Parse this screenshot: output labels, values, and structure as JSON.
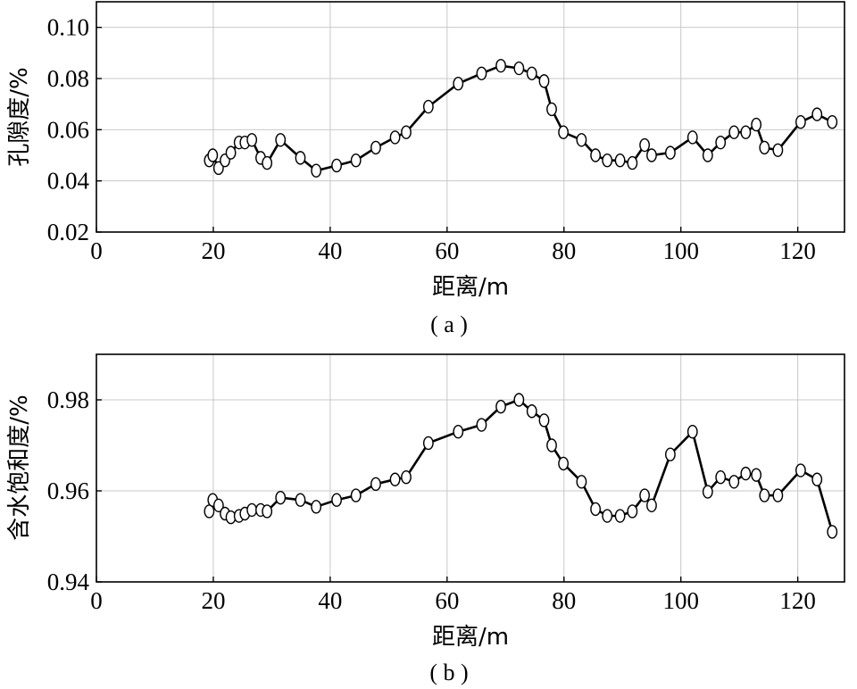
{
  "chart_data": [
    {
      "type": "line",
      "panel_label": "( a )",
      "xlabel": "距离/m",
      "ylabel": "孔隙度/%",
      "xlim": [
        0,
        128
      ],
      "ylim": [
        0.02,
        0.11
      ],
      "xticks": [
        0,
        20,
        40,
        60,
        80,
        100,
        120
      ],
      "yticks": [
        0.02,
        0.04,
        0.06,
        0.08,
        0.1
      ],
      "xtick_labels": [
        "0",
        "20",
        "40",
        "60",
        "80",
        "100",
        "120"
      ],
      "ytick_labels": [
        "0.02",
        "0.04",
        "0.06",
        "0.08",
        "0.10"
      ],
      "grid": true,
      "marker": "open-circle",
      "line_color": "#000000",
      "x": [
        19.3,
        19.9,
        20.9,
        22.0,
        23.0,
        24.4,
        25.4,
        26.6,
        28.1,
        29.2,
        31.5,
        34.9,
        37.6,
        41.1,
        44.4,
        47.8,
        51.1,
        53.0,
        56.8,
        61.9,
        65.9,
        69.2,
        72.3,
        74.5,
        76.6,
        77.9,
        79.9,
        83.0,
        85.4,
        87.4,
        89.6,
        91.7,
        93.8,
        95.0,
        98.2,
        102.0,
        104.6,
        106.8,
        109.1,
        111.1,
        112.9,
        114.3,
        116.6,
        120.5,
        123.3,
        125.9
      ],
      "y": [
        0.048,
        0.05,
        0.045,
        0.048,
        0.051,
        0.055,
        0.055,
        0.056,
        0.049,
        0.047,
        0.056,
        0.049,
        0.044,
        0.046,
        0.048,
        0.053,
        0.057,
        0.059,
        0.069,
        0.078,
        0.082,
        0.085,
        0.084,
        0.082,
        0.079,
        0.068,
        0.059,
        0.056,
        0.05,
        0.048,
        0.048,
        0.047,
        0.054,
        0.05,
        0.051,
        0.057,
        0.05,
        0.055,
        0.059,
        0.059,
        0.062,
        0.053,
        0.052,
        0.063,
        0.066,
        0.063
      ]
    },
    {
      "type": "line",
      "panel_label": "( b )",
      "xlabel": "距离/m",
      "ylabel": "含水饱和度/%",
      "xlim": [
        0,
        128
      ],
      "ylim": [
        0.94,
        0.99
      ],
      "xticks": [
        0,
        20,
        40,
        60,
        80,
        100,
        120
      ],
      "yticks": [
        0.94,
        0.96,
        0.98
      ],
      "xtick_labels": [
        "0",
        "20",
        "40",
        "60",
        "80",
        "100",
        "120"
      ],
      "ytick_labels": [
        "0.94",
        "0.96",
        "0.98"
      ],
      "grid": true,
      "marker": "open-circle",
      "line_color": "#000000",
      "x": [
        19.3,
        19.9,
        20.9,
        22.0,
        23.0,
        24.4,
        25.4,
        26.6,
        28.1,
        29.2,
        31.5,
        34.9,
        37.6,
        41.1,
        44.4,
        47.8,
        51.1,
        53.0,
        56.8,
        61.9,
        65.9,
        69.2,
        72.3,
        74.5,
        76.6,
        77.9,
        79.9,
        83.0,
        85.4,
        87.4,
        89.6,
        91.7,
        93.8,
        95.0,
        98.2,
        102.0,
        104.6,
        106.8,
        109.1,
        111.1,
        112.9,
        114.3,
        116.6,
        120.5,
        123.3,
        125.9
      ],
      "y": [
        0.9555,
        0.958,
        0.9568,
        0.955,
        0.9542,
        0.9545,
        0.955,
        0.9558,
        0.9558,
        0.9555,
        0.9585,
        0.958,
        0.9565,
        0.958,
        0.959,
        0.9615,
        0.9625,
        0.963,
        0.9705,
        0.973,
        0.9745,
        0.9785,
        0.98,
        0.9775,
        0.9755,
        0.97,
        0.966,
        0.962,
        0.956,
        0.9545,
        0.9545,
        0.9555,
        0.959,
        0.9568,
        0.968,
        0.973,
        0.9598,
        0.963,
        0.962,
        0.9638,
        0.9635,
        0.959,
        0.959,
        0.9645,
        0.9625,
        0.951
      ]
    }
  ]
}
